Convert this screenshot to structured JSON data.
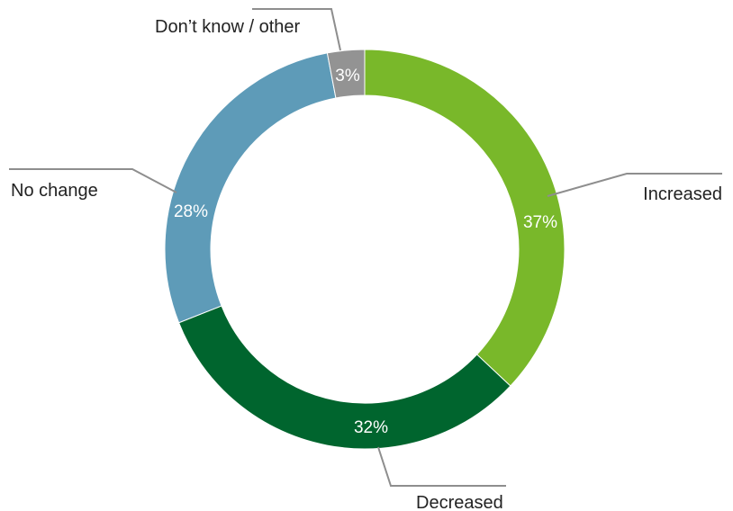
{
  "chart_data": {
    "type": "pie",
    "variant": "donut",
    "title": "",
    "categories": [
      "Increased",
      "Decreased",
      "No change",
      "Don’t know / other"
    ],
    "values": [
      37,
      32,
      28,
      3
    ],
    "value_labels": [
      "37%",
      "32%",
      "28%",
      "3%"
    ],
    "colors": [
      "#79b82a",
      "#00652e",
      "#5e9bb8",
      "#939393"
    ],
    "start": "12 o'clock",
    "direction": "clockwise",
    "legend": "callout labels with leader lines"
  }
}
